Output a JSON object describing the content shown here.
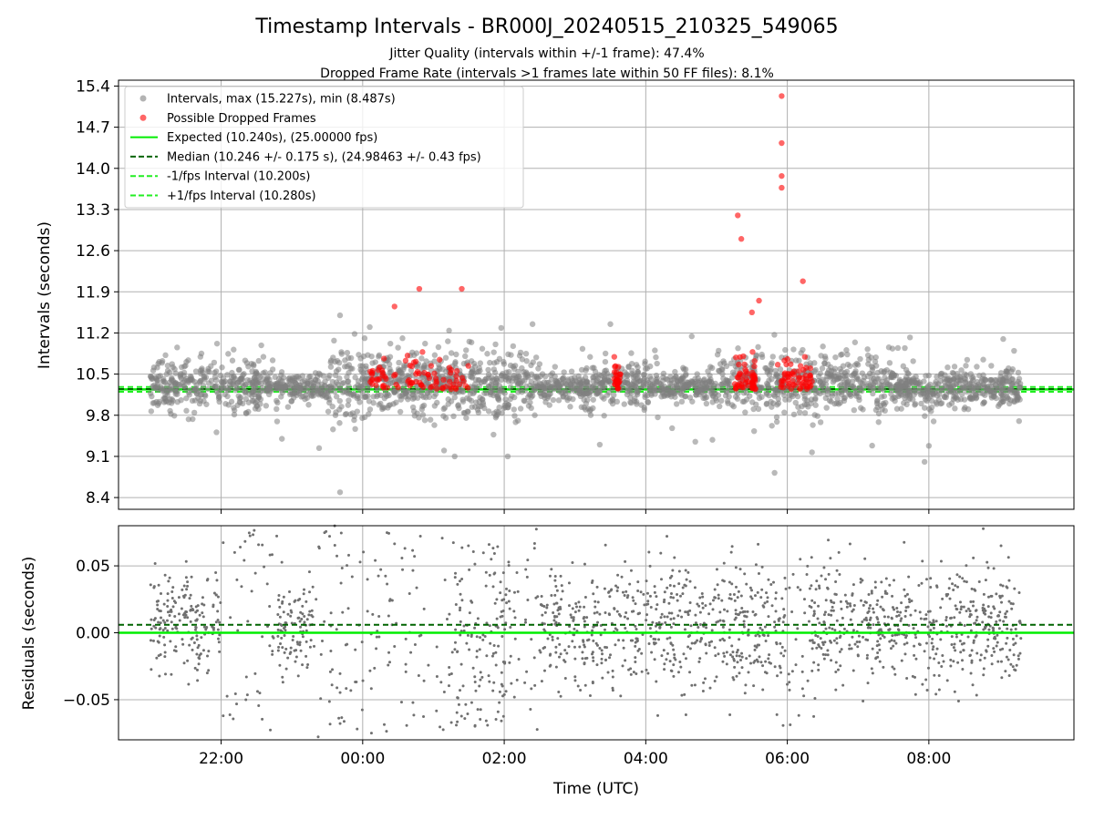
{
  "title": "Timestamp Intervals - BR000J_20240515_210325_549065",
  "subtitle_1": "Jitter Quality (intervals within +/-1 frame): 47.4%",
  "subtitle_2": "Dropped Frame Rate (intervals >1 frames late within 50 FF files): 8.1%",
  "colors": {
    "intervals": "#808080",
    "dropped": "#ff0000",
    "expected": "#00ee00",
    "median": "#006400",
    "fps_bounds": "#22ee22",
    "grid": "#b0b0b0"
  },
  "chart_data": [
    {
      "type": "scatter",
      "ylabel": "Intervals (seconds)",
      "xlim": [
        20.55,
        34.05
      ],
      "ylim": [
        8.2,
        15.5
      ],
      "yticks": [
        8.4,
        9.1,
        9.8,
        10.5,
        11.2,
        11.9,
        12.6,
        13.3,
        14.0,
        14.7,
        15.4
      ],
      "ytick_labels": [
        "8.4",
        "9.1",
        "9.8",
        "10.5",
        "11.2",
        "11.9",
        "12.6",
        "13.3",
        "14.0",
        "14.7",
        "15.4"
      ],
      "xticks": [
        22,
        24,
        26,
        28,
        30,
        32
      ],
      "grid": true,
      "legend_position": "top-left",
      "legend": [
        {
          "label": "Intervals, max (15.227s), min (8.487s)",
          "kind": "scatter",
          "color": "#808080"
        },
        {
          "label": "Possible Dropped Frames",
          "kind": "scatter",
          "color": "#ff0000"
        },
        {
          "label": "Expected (10.240s), (25.00000 fps)",
          "kind": "solid",
          "color": "#00ee00"
        },
        {
          "label": "Median (10.246 +/- 0.175 s), (24.98463 +/- 0.43 fps)",
          "kind": "dashed",
          "color": "#006400"
        },
        {
          "label": "-1/fps Interval (10.200s)",
          "kind": "dashed",
          "color": "#22ee22"
        },
        {
          "label": "+1/fps Interval (10.280s)",
          "kind": "dashed",
          "color": "#22ee22"
        }
      ],
      "lines": {
        "expected": 10.24,
        "median": 10.246,
        "minus_fps": 10.2,
        "plus_fps": 10.28
      },
      "x_range": [
        21.0,
        33.3
      ],
      "dense_regions": [
        {
          "x": [
            21.0,
            22.6
          ],
          "center": 10.3,
          "spread": 0.22
        },
        {
          "x": [
            23.5,
            26.5
          ],
          "center": 10.35,
          "spread": 0.28
        },
        {
          "x": [
            27.1,
            28.2
          ],
          "center": 10.3,
          "spread": 0.2
        },
        {
          "x": [
            29.0,
            31.5
          ],
          "center": 10.35,
          "spread": 0.25
        },
        {
          "x": [
            31.5,
            33.3
          ],
          "center": 10.25,
          "spread": 0.15
        }
      ],
      "outliers": [
        {
          "x": 23.68,
          "y": 11.5
        },
        {
          "x": 23.68,
          "y": 8.49
        },
        {
          "x": 24.1,
          "y": 11.3
        },
        {
          "x": 24.45,
          "y": 11.65
        },
        {
          "x": 24.8,
          "y": 11.95
        },
        {
          "x": 25.4,
          "y": 11.95
        },
        {
          "x": 24.5,
          "y": 10.95
        },
        {
          "x": 26.4,
          "y": 11.35
        },
        {
          "x": 27.5,
          "y": 11.35
        },
        {
          "x": 29.3,
          "y": 13.2
        },
        {
          "x": 29.35,
          "y": 12.8
        },
        {
          "x": 29.6,
          "y": 11.75
        },
        {
          "x": 29.5,
          "y": 11.55
        },
        {
          "x": 29.82,
          "y": 8.82
        },
        {
          "x": 29.92,
          "y": 15.23
        },
        {
          "x": 29.92,
          "y": 14.43
        },
        {
          "x": 29.92,
          "y": 13.87
        },
        {
          "x": 29.92,
          "y": 13.67
        },
        {
          "x": 30.22,
          "y": 12.08
        },
        {
          "x": 25.15,
          "y": 9.2
        },
        {
          "x": 25.3,
          "y": 9.1
        },
        {
          "x": 26.05,
          "y": 9.1
        },
        {
          "x": 27.35,
          "y": 9.3
        },
        {
          "x": 28.7,
          "y": 9.35
        },
        {
          "x": 32.0,
          "y": 9.28
        }
      ],
      "dropped_clusters": [
        {
          "x": [
            24.1,
            24.5
          ]
        },
        {
          "x": [
            24.6,
            25.0
          ]
        },
        {
          "x": [
            25.0,
            25.5
          ]
        },
        {
          "x": [
            27.55,
            27.65
          ]
        },
        {
          "x": [
            29.25,
            29.45
          ]
        },
        {
          "x": [
            29.5,
            29.55
          ]
        },
        {
          "x": [
            29.85,
            30.1
          ]
        },
        {
          "x": [
            30.15,
            30.35
          ]
        }
      ]
    },
    {
      "type": "scatter",
      "xlabel": "Time (UTC)",
      "ylabel": "Residuals (seconds)",
      "xlim": [
        20.55,
        34.05
      ],
      "ylim": [
        -0.08,
        0.08
      ],
      "yticks": [
        -0.05,
        0.0,
        0.05
      ],
      "ytick_labels": [
        "−0.05",
        "0.00",
        "0.05"
      ],
      "xticks": [
        22,
        24,
        26,
        28,
        30,
        32
      ],
      "xtick_labels": [
        "22:00",
        "00:00",
        "02:00",
        "04:00",
        "06:00",
        "08:00"
      ],
      "grid": true,
      "lines": {
        "expected": 0.0,
        "median": 0.006
      }
    }
  ]
}
